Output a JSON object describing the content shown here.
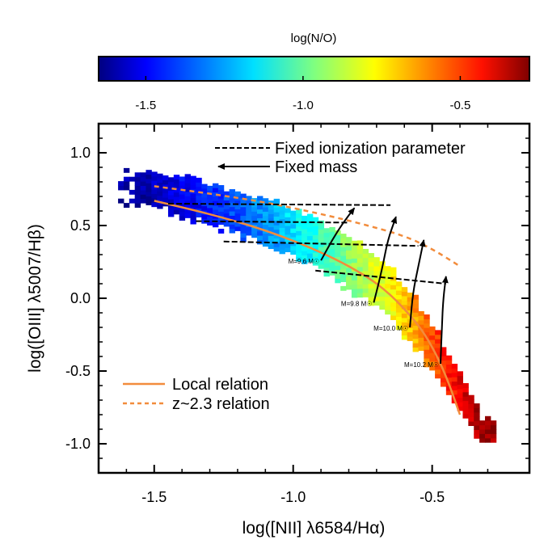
{
  "chart_data": {
    "type": "heatmap",
    "colorbar": {
      "label": "log(N/O)",
      "range": [
        -1.65,
        -0.28
      ],
      "ticks": [
        "-1.5",
        "-1.0",
        "-0.5"
      ],
      "tick_values": [
        -1.5,
        -1.0,
        -0.5
      ],
      "colormap": "jet (blue-cyan-yellow-red)"
    },
    "xlabel": "log([NII] λ6584/Hα)",
    "ylabel": "log([OIII] λ5007/Hβ)",
    "xlim": [
      -1.7,
      -0.15
    ],
    "ylim": [
      -1.2,
      1.2
    ],
    "x_ticks": [
      "-1.5",
      "-1.0",
      "-0.5"
    ],
    "x_tick_values": [
      -1.5,
      -1.0,
      -0.5
    ],
    "y_ticks": [
      "1.0",
      "0.5",
      "0.0",
      "-0.5",
      "-1.0"
    ],
    "y_tick_values": [
      1.0,
      0.5,
      0.0,
      -0.5,
      -1.0
    ],
    "heatmap_ridge": [
      {
        "x": -1.55,
        "y": 0.75,
        "width": 0.25,
        "lognO": -1.6
      },
      {
        "x": -1.4,
        "y": 0.68,
        "width": 0.3,
        "lognO": -1.5
      },
      {
        "x": -1.25,
        "y": 0.6,
        "width": 0.33,
        "lognO": -1.4
      },
      {
        "x": -1.1,
        "y": 0.5,
        "width": 0.36,
        "lognO": -1.28
      },
      {
        "x": -0.95,
        "y": 0.38,
        "width": 0.38,
        "lognO": -1.12
      },
      {
        "x": -0.8,
        "y": 0.22,
        "width": 0.4,
        "lognO": -0.95
      },
      {
        "x": -0.68,
        "y": 0.05,
        "width": 0.4,
        "lognO": -0.82
      },
      {
        "x": -0.58,
        "y": -0.15,
        "width": 0.38,
        "lognO": -0.68
      },
      {
        "x": -0.5,
        "y": -0.38,
        "width": 0.34,
        "lognO": -0.55
      },
      {
        "x": -0.43,
        "y": -0.6,
        "width": 0.3,
        "lognO": -0.45
      },
      {
        "x": -0.37,
        "y": -0.78,
        "width": 0.25,
        "lognO": -0.37
      },
      {
        "x": -0.33,
        "y": -0.92,
        "width": 0.2,
        "lognO": -0.31
      }
    ],
    "series": [
      {
        "name": "Local relation",
        "style": "solid",
        "color": "#f28c3c",
        "x": [
          -1.5,
          -1.3,
          -1.1,
          -0.9,
          -0.75,
          -0.65,
          -0.55,
          -0.5,
          -0.45,
          -0.4
        ],
        "y": [
          0.67,
          0.58,
          0.47,
          0.32,
          0.17,
          0.03,
          -0.18,
          -0.33,
          -0.53,
          -0.8
        ]
      },
      {
        "name": "z~2.3 relation",
        "style": "dashed",
        "color": "#f28c3c",
        "x": [
          -1.5,
          -1.3,
          -1.1,
          -0.9,
          -0.75,
          -0.6,
          -0.5,
          -0.4
        ],
        "y": [
          0.77,
          0.72,
          0.66,
          0.58,
          0.51,
          0.43,
          0.34,
          0.22
        ]
      },
      {
        "name": "Fixed ionization parameter",
        "style": "dashed",
        "color": "#000000",
        "lines": [
          {
            "x": [
              -1.45,
              -0.65
            ],
            "y": [
              0.65,
              0.64
            ]
          },
          {
            "x": [
              -1.35,
              -0.8
            ],
            "y": [
              0.53,
              0.52
            ]
          },
          {
            "x": [
              -1.25,
              -0.55
            ],
            "y": [
              0.39,
              0.36
            ]
          },
          {
            "x": [
              -0.92,
              -0.45
            ],
            "y": [
              0.19,
              0.1
            ]
          }
        ]
      },
      {
        "name": "Fixed mass",
        "style": "solid-arrow",
        "color": "#000000",
        "tracks": [
          {
            "label": "M=9.6 M☉",
            "mass": 9.6,
            "x": [
              -0.9,
              -0.86,
              -0.82,
              -0.78
            ],
            "y": [
              0.26,
              0.4,
              0.52,
              0.62
            ]
          },
          {
            "label": "M=9.8 M☉",
            "mass": 9.8,
            "x": [
              -0.71,
              -0.68,
              -0.66,
              -0.63
            ],
            "y": [
              -0.03,
              0.2,
              0.4,
              0.56
            ]
          },
          {
            "label": "M=10.0 M☉",
            "mass": 10.0,
            "x": [
              -0.58,
              -0.57,
              -0.55,
              -0.53
            ],
            "y": [
              -0.2,
              0.03,
              0.22,
              0.4
            ]
          },
          {
            "label": "M=10.2 M☉",
            "mass": 10.2,
            "x": [
              -0.47,
              -0.465,
              -0.46,
              -0.45
            ],
            "y": [
              -0.45,
              -0.2,
              0.0,
              0.15
            ]
          }
        ]
      }
    ],
    "legend_top": [
      "Fixed ionization parameter",
      "Fixed mass"
    ],
    "legend_bottom": [
      "Local relation",
      "z~2.3 relation"
    ]
  }
}
